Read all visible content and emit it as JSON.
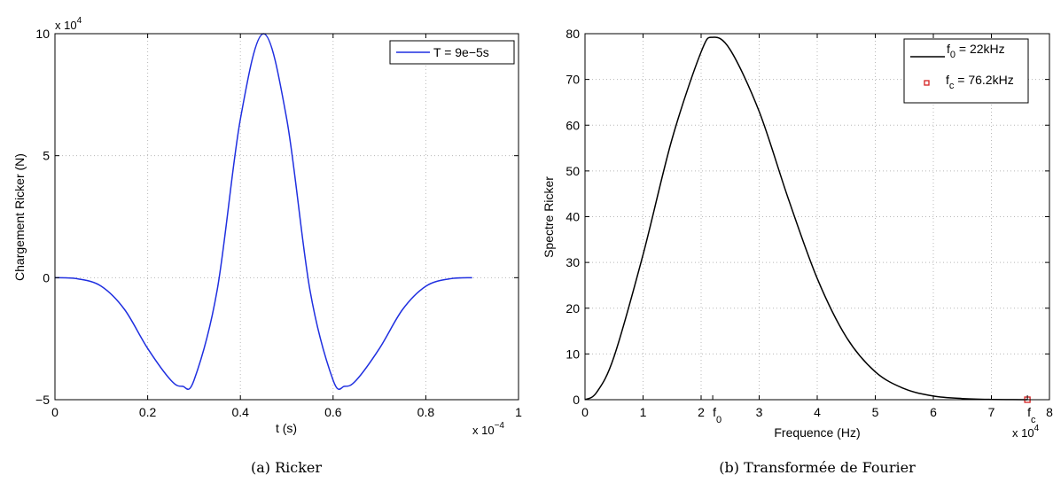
{
  "chart_data": [
    {
      "type": "line",
      "xlabel": "t (s)",
      "ylabel": "Chargement Ricker (N)",
      "xlim": [
        0,
        1.0
      ],
      "ylim": [
        -5,
        10
      ],
      "x_ticks": [
        "0",
        "0.2",
        "0.4",
        "0.6",
        "0.8",
        "1"
      ],
      "y_ticks": [
        "−5",
        "0",
        "5",
        "10"
      ],
      "x_multiplier": "x 10",
      "x_multiplier_exp": "−4",
      "y_multiplier": "x 10",
      "y_multiplier_exp": "4",
      "grid": true,
      "legend_position": "top-right",
      "series": [
        {
          "name": "T = 9e−5s",
          "color": "#1f2fe0",
          "x": [
            0,
            0.05,
            0.1,
            0.15,
            0.2,
            0.25,
            0.275,
            0.3,
            0.35,
            0.4,
            0.45,
            0.5,
            0.55,
            0.6,
            0.625,
            0.65,
            0.7,
            0.75,
            0.8,
            0.85,
            0.9
          ],
          "y": [
            0,
            -0.05,
            -0.35,
            -1.3,
            -2.9,
            -4.2,
            -4.45,
            -4.2,
            -0.5,
            6.5,
            10,
            6.5,
            -0.5,
            -4.2,
            -4.45,
            -4.2,
            -2.9,
            -1.3,
            -0.35,
            -0.05,
            0
          ]
        }
      ]
    },
    {
      "type": "line",
      "xlabel": "Frequence (Hz)",
      "ylabel": "Spectre Ricker",
      "xlim": [
        0,
        8
      ],
      "ylim": [
        0,
        80
      ],
      "x_ticks": [
        "0",
        "1",
        "2",
        "3",
        "4",
        "5",
        "6",
        "7",
        "8"
      ],
      "y_ticks": [
        "0",
        "10",
        "20",
        "30",
        "40",
        "50",
        "60",
        "70",
        "80"
      ],
      "x_multiplier": "x 10",
      "x_multiplier_exp": "4",
      "grid": true,
      "legend_position": "top-right",
      "annotations": [
        {
          "x": 2.2,
          "main": "f",
          "sub": "0"
        },
        {
          "x": 7.62,
          "main": "f",
          "sub": "c"
        }
      ],
      "series": [
        {
          "name_main": "f",
          "name_sub": "0",
          "name_rest": " = 22kHz",
          "color": "#000000",
          "x": [
            0,
            0.2,
            0.5,
            1.0,
            1.5,
            2.0,
            2.2,
            2.5,
            3.0,
            3.5,
            4.0,
            4.5,
            5.0,
            5.5,
            6.0,
            6.5,
            7.0,
            7.62
          ],
          "y": [
            0,
            1.6,
            9.4,
            31.7,
            57,
            76,
            79.2,
            76.5,
            63,
            44,
            26.5,
            13.7,
            6.1,
            2.4,
            0.8,
            0.25,
            0.06,
            0
          ]
        },
        {
          "name_main": "f",
          "name_sub": "c",
          "name_rest": " = 76.2kHz",
          "color": "#d42020",
          "marker": "square",
          "x": [
            7.62
          ],
          "y": [
            0
          ]
        }
      ]
    }
  ],
  "captions": {
    "left": "(a)  Ricker",
    "right": "(b)  Transformée de Fourier"
  }
}
